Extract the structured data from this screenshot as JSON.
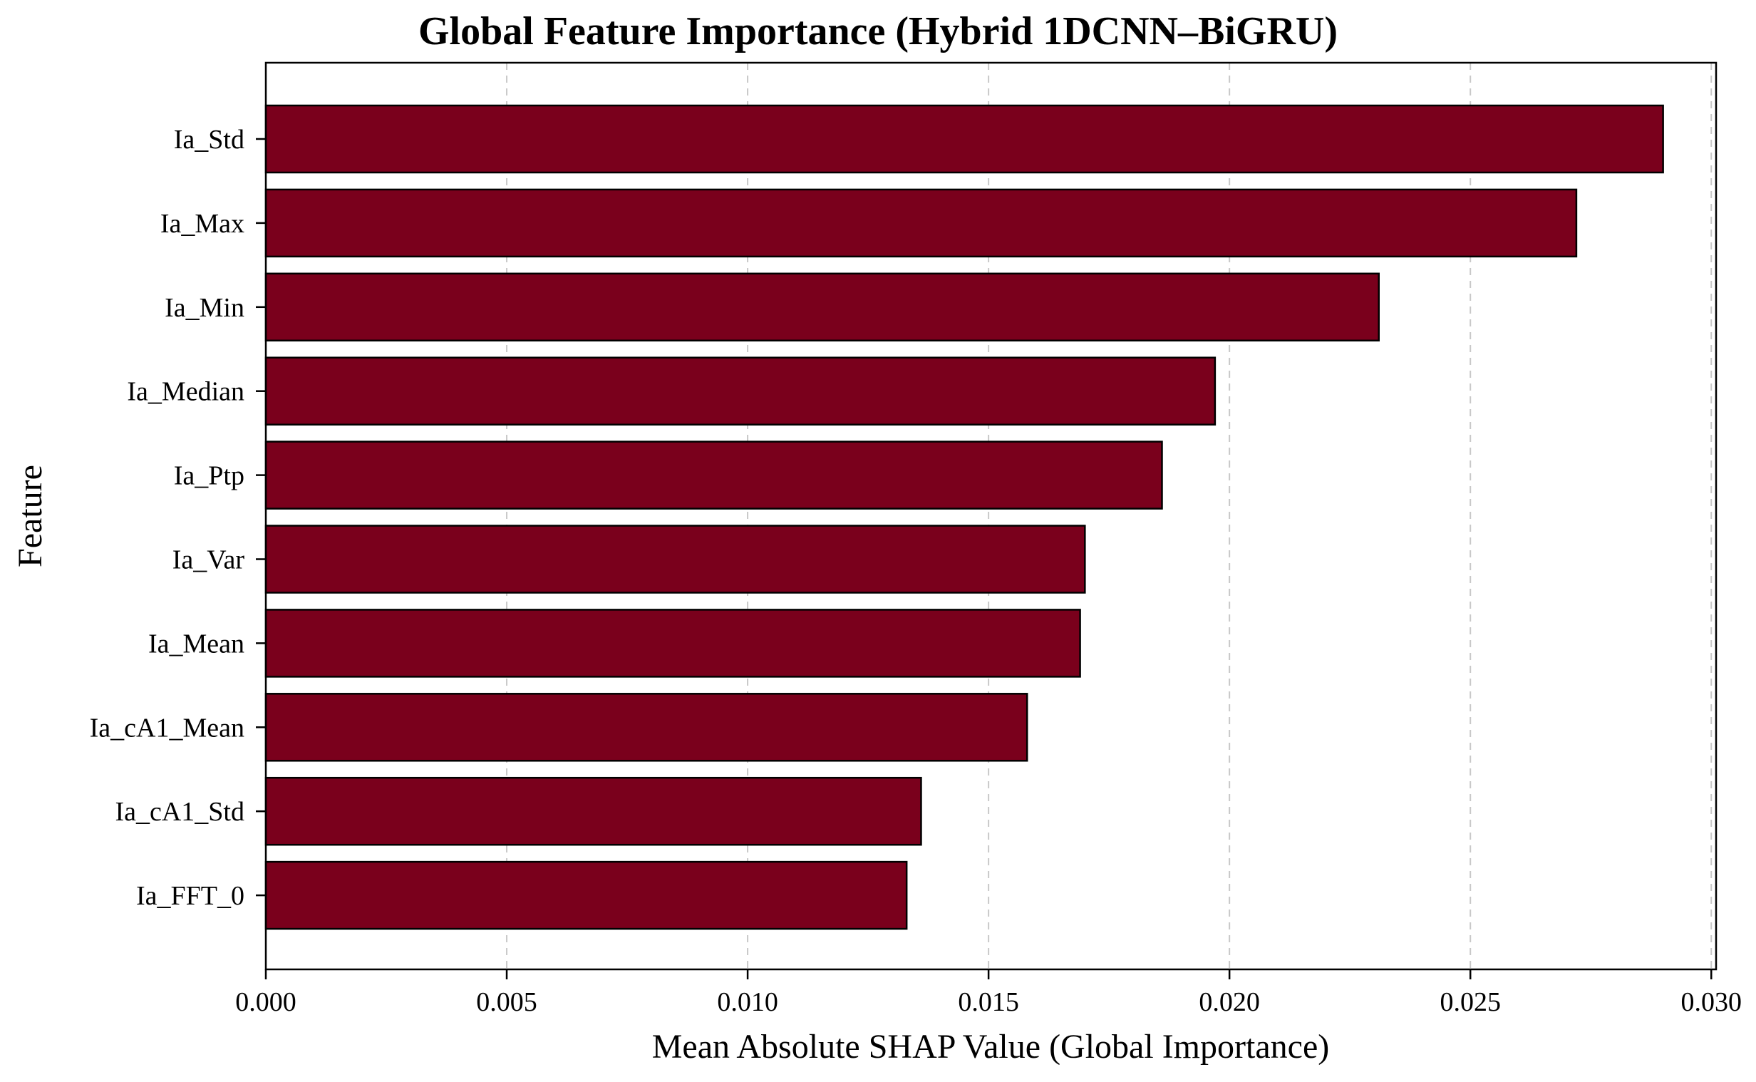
{
  "chart_data": {
    "type": "bar",
    "orientation": "horizontal",
    "title": "Global Feature Importance (Hybrid 1DCNN–BiGRU)",
    "xlabel": "Mean Absolute SHAP Value (Global Importance)",
    "ylabel": "Feature",
    "categories": [
      "Ia_Std",
      "Ia_Max",
      "Ia_Min",
      "Ia_Median",
      "Ia_Ptp",
      "Ia_Var",
      "Ia_Mean",
      "Ia_cA1_Mean",
      "Ia_cA1_Std",
      "Ia_FFT_0"
    ],
    "values": [
      0.029,
      0.0272,
      0.0231,
      0.0197,
      0.0186,
      0.017,
      0.0169,
      0.0158,
      0.0136,
      0.0133
    ],
    "xlim": [
      0,
      0.0301
    ],
    "xticks": [
      "0.000",
      "0.005",
      "0.010",
      "0.015",
      "0.020",
      "0.025",
      "0.030"
    ],
    "xtick_values": [
      0,
      0.005,
      0.01,
      0.015,
      0.02,
      0.025,
      0.03
    ],
    "grid": "x-dashed",
    "bar_color": "#7a001c"
  }
}
